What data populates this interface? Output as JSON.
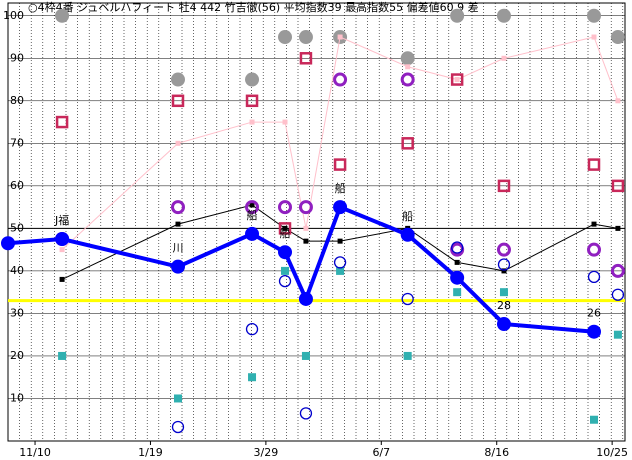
{
  "chart_data": {
    "type": "line",
    "title": "○4枠4番 ジュベルハフィート 牡4 442 竹吉徹(56) 平均指数39 最高指数55 偏差値60.9 差",
    "xlim": [
      -16.4,
      357.8
    ],
    "ylim": [
      0,
      103
    ],
    "xticks": [
      {
        "value": 0,
        "label": "11/10"
      },
      {
        "value": 70,
        "label": "1/19"
      },
      {
        "value": 140,
        "label": "3/29"
      },
      {
        "value": 210,
        "label": "6/7"
      },
      {
        "value": 280,
        "label": "8/16"
      },
      {
        "value": 350,
        "label": "10/25"
      }
    ],
    "yticks": [
      10,
      20,
      30,
      40,
      50,
      60,
      70,
      80,
      90,
      100
    ],
    "grid": true,
    "reference_lines": [
      {
        "value": 50,
        "color": "#000000"
      },
      {
        "value": 33,
        "color": "#ffff00"
      }
    ],
    "x": [
      16.4,
      86.7,
      131.6,
      151.6,
      164.3,
      185,
      226,
      256,
      284.4,
      339,
      353.5
    ],
    "series": [
      {
        "color": "#999999",
        "marker": "dot",
        "values": [
          100,
          85,
          85,
          95,
          95,
          95,
          90,
          100,
          100,
          100,
          95
        ]
      },
      {
        "color": "#ffc0cb",
        "marker": "small-square",
        "line": true,
        "values": [
          45,
          70,
          75,
          75,
          50,
          95,
          88,
          85,
          90,
          95,
          80
        ]
      },
      {
        "color": "#000000",
        "marker": "small-square",
        "line": true,
        "values": [
          38,
          51,
          55.5,
          50,
          47,
          47,
          50,
          42,
          40,
          51,
          50
        ]
      },
      {
        "color": "#c8285a",
        "marker": "open-square",
        "values": [
          75,
          80,
          80,
          50,
          90,
          65,
          70,
          85,
          60,
          65,
          60
        ]
      },
      {
        "color": "#30b0b0",
        "marker": "filled-square",
        "values": [
          20,
          10,
          15,
          40,
          20,
          40,
          20,
          35,
          35,
          5,
          25
        ]
      },
      {
        "color": "#9020c0",
        "marker": "ring",
        "values": [
          47.5,
          55,
          55,
          55,
          55,
          85,
          85,
          45,
          45,
          45,
          40
        ]
      },
      {
        "color": "#0000cc",
        "marker": "open-circle",
        "values": [
          null,
          3.3,
          26.3,
          37.6,
          6.5,
          42,
          33.4,
          45.5,
          41.5,
          38.6,
          34.4
        ]
      },
      {
        "color": "#0000ff",
        "marker": "big-dot",
        "line": true,
        "main": true,
        "x": [
          -16.4,
          16.4,
          86.7,
          131.6,
          151.6,
          164.3,
          185,
          226,
          256,
          284.4,
          339
        ],
        "values": [
          46.5,
          47.5,
          41,
          48.7,
          44.4,
          33.4,
          55,
          48.5,
          38.4,
          27.5,
          25.7
        ],
        "point_labels": [
          null,
          "J福",
          "川",
          "船",
          "船",
          null,
          "船",
          "船",
          null,
          "28",
          "26"
        ]
      }
    ]
  }
}
